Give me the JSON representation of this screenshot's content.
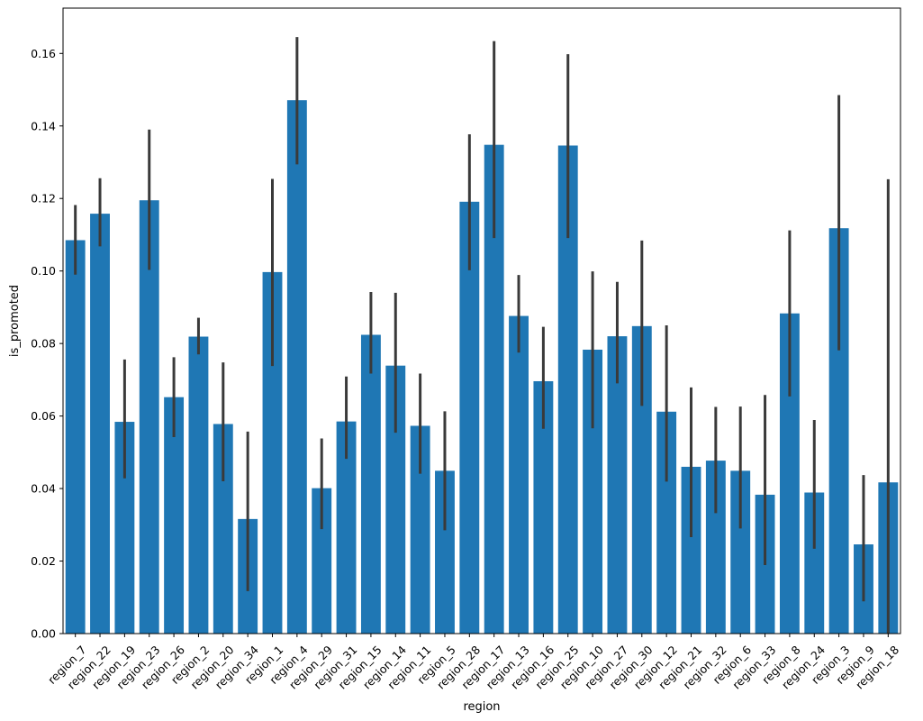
{
  "chart_data": {
    "type": "bar",
    "title": "",
    "xlabel": "region",
    "ylabel": "is_promoted",
    "ylim": [
      0,
      0.1725
    ],
    "yticks": [
      0.0,
      0.02,
      0.04,
      0.06,
      0.08,
      0.1,
      0.12,
      0.14,
      0.16
    ],
    "ytick_labels": [
      "0.00",
      "0.02",
      "0.04",
      "0.06",
      "0.08",
      "0.10",
      "0.12",
      "0.14",
      "0.16"
    ],
    "grid": false,
    "bar_color": "#1f77b4",
    "errorbar_color": "#3a3a3a",
    "categories": [
      "region_7",
      "region_22",
      "region_19",
      "region_23",
      "region_26",
      "region_2",
      "region_20",
      "region_34",
      "region_1",
      "region_4",
      "region_29",
      "region_31",
      "region_15",
      "region_14",
      "region_11",
      "region_5",
      "region_28",
      "region_17",
      "region_13",
      "region_16",
      "region_25",
      "region_10",
      "region_27",
      "region_30",
      "region_12",
      "region_21",
      "region_32",
      "region_6",
      "region_33",
      "region_8",
      "region_24",
      "region_3",
      "region_9",
      "region_18"
    ],
    "values": [
      0.1085,
      0.1158,
      0.0584,
      0.1195,
      0.0652,
      0.0819,
      0.0578,
      0.0316,
      0.0997,
      0.1471,
      0.0401,
      0.0585,
      0.0824,
      0.0739,
      0.0573,
      0.0449,
      0.1191,
      0.1348,
      0.0876,
      0.0696,
      0.1346,
      0.0783,
      0.082,
      0.0848,
      0.0612,
      0.046,
      0.0477,
      0.0449,
      0.0383,
      0.0883,
      0.0389,
      0.1118,
      0.0246,
      0.0417
    ],
    "ci_low": [
      0.099,
      0.1068,
      0.0428,
      0.1003,
      0.0542,
      0.077,
      0.042,
      0.0117,
      0.0738,
      0.1294,
      0.0288,
      0.0482,
      0.0717,
      0.0554,
      0.0441,
      0.0285,
      0.1002,
      0.1091,
      0.0775,
      0.0565,
      0.1091,
      0.0566,
      0.069,
      0.0628,
      0.0419,
      0.0266,
      0.0332,
      0.029,
      0.0189,
      0.0654,
      0.0234,
      0.0781,
      0.0089,
      0.0
    ],
    "ci_high": [
      0.1182,
      0.1256,
      0.0756,
      0.139,
      0.0762,
      0.0871,
      0.0748,
      0.0557,
      0.1254,
      0.1645,
      0.0538,
      0.0709,
      0.0942,
      0.094,
      0.0717,
      0.0613,
      0.1377,
      0.1634,
      0.0989,
      0.0846,
      0.1598,
      0.0999,
      0.097,
      0.1084,
      0.085,
      0.0679,
      0.0625,
      0.0626,
      0.0658,
      0.1112,
      0.0589,
      0.1485,
      0.0437,
      0.1253
    ]
  }
}
